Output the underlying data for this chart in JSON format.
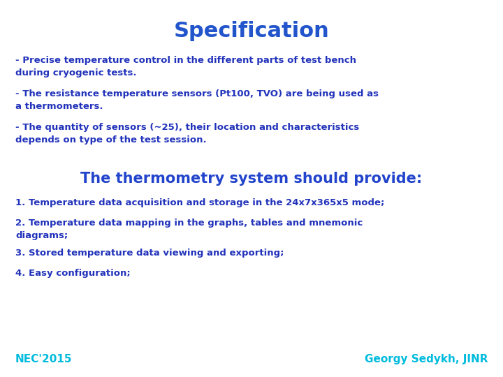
{
  "title": "Specification",
  "title_color": "#2255CC",
  "title_fontsize": 22,
  "body_color": "#2233BB",
  "background_color": "#FFFFFF",
  "bullet_points": [
    "- Precise temperature control in the different parts of test bench\nduring cryogenic tests.",
    "- The resistance temperature sensors (Pt100, TVO) are being used as\na thermometers.",
    "- The quantity of sensors (~25), their location and characteristics\ndepends on type of the test session."
  ],
  "subheading": "The thermometry system should provide:",
  "subheading_color": "#2244CC",
  "numbered_points": [
    "1. Temperature data acquisition and storage in the 24x7x365x5 mode;",
    "2. Temperature data mapping in the graphs, tables and mnemonic\ndiagrams;",
    "3. Stored temperature data viewing and exporting;",
    "4. Easy configuration;"
  ],
  "footer_left": "NEC'2015",
  "footer_right": "Georgy Sedykh, JINR",
  "footer_color": "#00BBDD",
  "bullet_fontsize": 9.5,
  "subheading_fontsize": 15,
  "numbered_fontsize": 9.5,
  "footer_fontsize": 11
}
